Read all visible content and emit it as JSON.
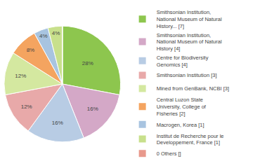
{
  "chart_data": {
    "type": "pie",
    "categories": [
      "Smithsonian Institution,\nNational Museum of Natural\nHistory... [7]",
      "Smithsonian Institution,\nNational Museum of Natural\nHistory [4]",
      "Centre for Biodiversity\nGenomics [4]",
      "Smithsonian Institution [3]",
      "Mined from GenBank, NCBI [3]",
      "Central Luzon State\nUniversity, College of\nFisheries [2]",
      "Macrogen, Korea [1]",
      "Institut de Recherche pour le\nDeveloppement, France [1]",
      "0 Others []"
    ],
    "values": [
      28,
      16,
      16,
      12,
      12,
      8,
      4,
      4,
      0
    ],
    "value_labels": [
      "28%",
      "16%",
      "16%",
      "12%",
      "12%",
      "8%",
      "4%",
      "4%",
      null
    ],
    "colors": [
      "#8dc64e",
      "#d4a8c7",
      "#b8cce4",
      "#e8a9a9",
      "#d4e8a0",
      "#f4a460",
      "#a8c4e0",
      "#c8e08c",
      "#e8998c"
    ],
    "data_labels": true,
    "legend": "right"
  }
}
